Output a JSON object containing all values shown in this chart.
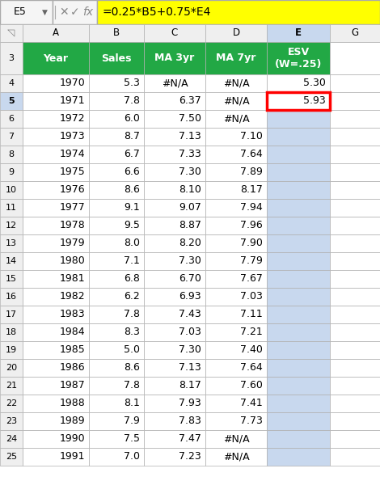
{
  "formula_bar_cell": "E5",
  "formula_bar_formula": "=0.25*B5+0.75*E4",
  "col_headers": [
    "Year",
    "Sales",
    "MA 3yr",
    "MA 7yr",
    "ESV\n(W=.25)"
  ],
  "row_numbers": [
    3,
    4,
    5,
    6,
    7,
    8,
    9,
    10,
    11,
    12,
    13,
    14,
    15,
    16,
    17,
    18,
    19,
    20,
    21,
    22,
    23,
    24,
    25
  ],
  "data": [
    [
      "1970",
      "5.3",
      "#N/A",
      "#N/A",
      "5.30"
    ],
    [
      "1971",
      "7.8",
      "6.37",
      "#N/A",
      "5.93"
    ],
    [
      "1972",
      "6.0",
      "7.50",
      "#N/A",
      ""
    ],
    [
      "1973",
      "8.7",
      "7.13",
      "7.10",
      ""
    ],
    [
      "1974",
      "6.7",
      "7.33",
      "7.64",
      ""
    ],
    [
      "1975",
      "6.6",
      "7.30",
      "7.89",
      ""
    ],
    [
      "1976",
      "8.6",
      "8.10",
      "8.17",
      ""
    ],
    [
      "1977",
      "9.1",
      "9.07",
      "7.94",
      ""
    ],
    [
      "1978",
      "9.5",
      "8.87",
      "7.96",
      ""
    ],
    [
      "1979",
      "8.0",
      "8.20",
      "7.90",
      ""
    ],
    [
      "1980",
      "7.1",
      "7.30",
      "7.79",
      ""
    ],
    [
      "1981",
      "6.8",
      "6.70",
      "7.67",
      ""
    ],
    [
      "1982",
      "6.2",
      "6.93",
      "7.03",
      ""
    ],
    [
      "1983",
      "7.8",
      "7.43",
      "7.11",
      ""
    ],
    [
      "1984",
      "8.3",
      "7.03",
      "7.21",
      ""
    ],
    [
      "1985",
      "5.0",
      "7.30",
      "7.40",
      ""
    ],
    [
      "1986",
      "8.6",
      "7.13",
      "7.64",
      ""
    ],
    [
      "1987",
      "7.8",
      "8.17",
      "7.60",
      ""
    ],
    [
      "1988",
      "8.1",
      "7.93",
      "7.41",
      ""
    ],
    [
      "1989",
      "7.9",
      "7.83",
      "7.73",
      ""
    ],
    [
      "1990",
      "7.5",
      "7.47",
      "#N/A",
      ""
    ],
    [
      "1991",
      "7.0",
      "7.23",
      "#N/A",
      ""
    ]
  ],
  "header_bg": "#22a845",
  "header_text": "#ffffff",
  "formula_bg": "#ffff00",
  "active_col_bg": "#c8d8ee",
  "selected_cell_border": "#ff0000",
  "row_num_bg": "#efefef",
  "col_letter_bg": "#efefef",
  "active_col_letter_bg": "#c8d8ee",
  "active_row_num_bg": "#c8d8ee",
  "grid_color": "#b0b0b0",
  "fig_w": 4.7,
  "fig_h": 6.16,
  "dpi": 100
}
